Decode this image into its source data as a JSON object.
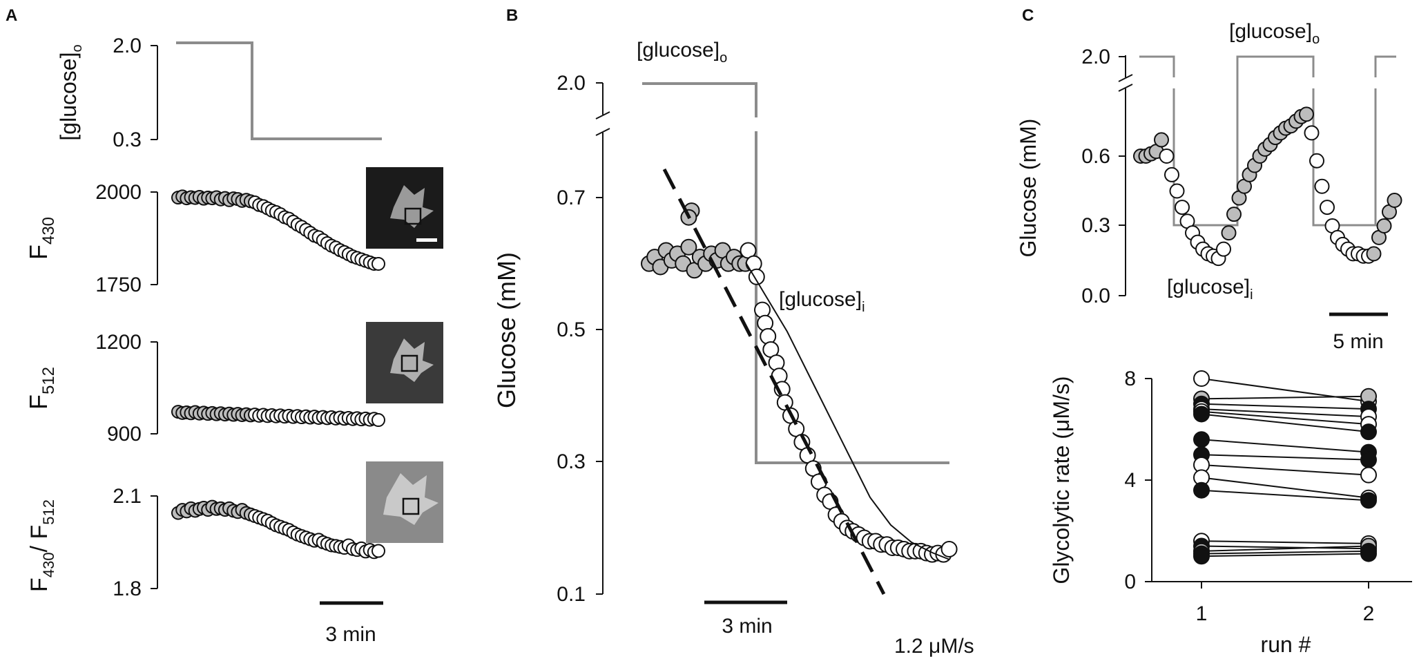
{
  "panels": {
    "A": {
      "letter": "A",
      "glucose_label": "[glucose]",
      "glucose_sub": "o",
      "glucose_ticks": [
        "2.0",
        "0.3"
      ],
      "f430_label": "F",
      "f430_sub": "430",
      "f430_ticks": [
        "2000",
        "1750"
      ],
      "f512_label": "F",
      "f512_sub": "512",
      "f512_ticks": [
        "1200",
        "900"
      ],
      "ratio_label_a": "F",
      "ratio_sub_a": "430",
      "ratio_label_b": "/ F",
      "ratio_sub_b": "512",
      "ratio_ticks": [
        "2.1",
        "1.8"
      ],
      "scale_bar": "3 min"
    },
    "B": {
      "letter": "B",
      "ylabel": "Glucose (mM)",
      "yticks": [
        "2.0",
        "0.7",
        "0.5",
        "0.3",
        "0.1"
      ],
      "glucose_o_label": "[glucose]",
      "glucose_o_sub": "o",
      "glucose_i_label": "[glucose]",
      "glucose_i_sub": "i",
      "rate_label": "1.2 μM/s",
      "scale_bar": "3 min"
    },
    "C": {
      "letter": "C",
      "top_ylabel": "Glucose (mM)",
      "top_yticks": [
        "2.0",
        "0.6",
        "0.3",
        "0.0"
      ],
      "glucose_o_label": "[glucose]",
      "glucose_o_sub": "o",
      "glucose_i_label": "[glucose]",
      "glucose_i_sub": "i",
      "scale_bar": "5 min",
      "bottom_ylabel": "Glycolytic rate (μM/s)",
      "bottom_yticks": [
        "8",
        "4",
        "0"
      ],
      "bottom_xlabel": "run #",
      "bottom_xticks": [
        "1",
        "2"
      ]
    }
  },
  "colors": {
    "stimulus": "#8c8c8c",
    "marker_gray": "#bdbdbd",
    "marker_white": "#ffffff",
    "marker_black": "#111111"
  },
  "chart_data": [
    {
      "type": "line",
      "panel": "A-glucose",
      "series": [
        {
          "values": [
            {
              "t": 0,
              "y": 2.0
            },
            {
              "t": 3.8,
              "y": 2.0
            },
            {
              "t": 3.8,
              "y": 0.3
            },
            {
              "t": 9.5,
              "y": 0.3
            }
          ]
        }
      ],
      "x": {
        "unit": "min"
      },
      "ylim": [
        0.3,
        2.0
      ]
    },
    {
      "type": "scatter",
      "panel": "A-F430",
      "ylim": [
        1750,
        2000
      ],
      "series": [
        {
          "x_min": [
            0,
            0.2,
            0.4,
            0.6,
            0.8,
            1,
            1.2,
            1.4,
            1.6,
            1.8,
            2,
            2.2,
            2.4,
            2.6,
            2.8,
            3,
            3.2,
            3.4,
            3.6,
            3.8,
            4,
            4.2,
            4.4,
            4.6,
            4.8,
            5,
            5.2,
            5.4,
            5.6,
            5.8,
            6,
            6.2,
            6.4,
            6.6,
            6.8,
            7,
            7.2,
            7.4,
            7.6,
            7.8,
            8,
            8.2,
            8.4,
            8.6,
            8.8,
            9,
            9.2,
            9.4
          ],
          "y": [
            1985,
            1988,
            1983,
            1986,
            1984,
            1987,
            1982,
            1985,
            1983,
            1986,
            1980,
            1984,
            1978,
            1983,
            1981,
            1976,
            1979,
            1975,
            1972,
            1965,
            1962,
            1956,
            1950,
            1946,
            1940,
            1932,
            1928,
            1920,
            1912,
            1906,
            1898,
            1890,
            1882,
            1878,
            1870,
            1862,
            1855,
            1850,
            1843,
            1838,
            1832,
            1826,
            1822,
            1818,
            1814,
            1810,
            1806,
            1806
          ]
        }
      ]
    },
    {
      "type": "scatter",
      "panel": "A-F512",
      "ylim": [
        900,
        1200
      ],
      "series": [
        {
          "x_min": [
            0,
            0.2,
            0.4,
            0.6,
            0.8,
            1,
            1.2,
            1.4,
            1.6,
            1.8,
            2,
            2.2,
            2.4,
            2.6,
            2.8,
            3,
            3.2,
            3.4,
            3.6,
            3.8,
            4,
            4.2,
            4.4,
            4.6,
            4.8,
            5,
            5.2,
            5.4,
            5.6,
            5.8,
            6,
            6.2,
            6.4,
            6.6,
            6.8,
            7,
            7.2,
            7.4,
            7.6,
            7.8,
            8,
            8.2,
            8.4,
            8.6,
            8.8,
            9,
            9.2,
            9.4
          ],
          "y": [
            972,
            968,
            970,
            967,
            971,
            966,
            969,
            965,
            968,
            964,
            967,
            963,
            966,
            962,
            965,
            961,
            964,
            960,
            963,
            959,
            962,
            958,
            961,
            957,
            960,
            956,
            959,
            955,
            958,
            954,
            957,
            953,
            956,
            952,
            955,
            951,
            954,
            950,
            953,
            949,
            952,
            948,
            951,
            947,
            950,
            946,
            949,
            945
          ]
        }
      ]
    },
    {
      "type": "scatter",
      "panel": "A-ratio",
      "ylim": [
        1.8,
        2.1
      ],
      "series": [
        {
          "x_min": [
            0,
            0.2,
            0.4,
            0.6,
            0.8,
            1,
            1.2,
            1.4,
            1.6,
            1.8,
            2,
            2.2,
            2.4,
            2.6,
            2.8,
            3,
            3.2,
            3.4,
            3.6,
            3.8,
            4,
            4.2,
            4.4,
            4.6,
            4.8,
            5,
            5.2,
            5.4,
            5.6,
            5.8,
            6,
            6.2,
            6.4,
            6.6,
            6.8,
            7,
            7.2,
            7.4,
            7.6,
            7.8,
            8,
            8.2,
            8.4,
            8.6,
            8.8,
            9,
            9.2,
            9.4
          ],
          "y": [
            2.045,
            2.055,
            2.05,
            2.06,
            2.052,
            2.058,
            2.062,
            2.055,
            2.065,
            2.058,
            2.06,
            2.055,
            2.06,
            2.052,
            2.048,
            2.055,
            2.045,
            2.04,
            2.035,
            2.03,
            2.025,
            2.02,
            2.012,
            2.005,
            2.0,
            1.995,
            1.99,
            1.982,
            1.975,
            1.97,
            1.965,
            1.96,
            1.955,
            1.958,
            1.95,
            1.945,
            1.94,
            1.938,
            1.935,
            1.932,
            1.94,
            1.928,
            1.925,
            1.93,
            1.92,
            1.925,
            1.918,
            1.922
          ]
        }
      ]
    },
    {
      "type": "scatter",
      "panel": "B",
      "x": {
        "unit": "min"
      },
      "ylim": [
        0.1,
        0.7
      ],
      "series": [
        {
          "style": "gray",
          "x_min": [
            0,
            0.2,
            0.4,
            0.6,
            0.8,
            1,
            1.2,
            1.4,
            1.6,
            1.8,
            2,
            2.2,
            2.4,
            2.6,
            2.8,
            3,
            3.2,
            3.4,
            1.5,
            1.4
          ],
          "y": [
            0.6,
            0.61,
            0.595,
            0.62,
            0.605,
            0.615,
            0.6,
            0.625,
            0.59,
            0.61,
            0.6,
            0.615,
            0.605,
            0.62,
            0.6,
            0.61,
            0.6,
            0.6,
            0.68,
            0.67
          ]
        },
        {
          "style": "white",
          "x_min": [
            3.5,
            3.7,
            3.8,
            4,
            4.1,
            4.2,
            4.3,
            4.5,
            4.6,
            4.7,
            4.8,
            5,
            5.2,
            5.4,
            5.6,
            5.8,
            6,
            6.2,
            6.4,
            6.6,
            6.8,
            7,
            7.2,
            7.4,
            7.6,
            7.8,
            8,
            8.2,
            8.4,
            8.6,
            8.8,
            9,
            9.2,
            9.4,
            9.6,
            9.8,
            10,
            10.2,
            10.4,
            10.6
          ],
          "y": [
            0.62,
            0.6,
            0.58,
            0.53,
            0.51,
            0.49,
            0.47,
            0.45,
            0.43,
            0.41,
            0.39,
            0.37,
            0.35,
            0.33,
            0.31,
            0.29,
            0.27,
            0.25,
            0.24,
            0.22,
            0.21,
            0.2,
            0.195,
            0.19,
            0.185,
            0.18,
            0.18,
            0.175,
            0.175,
            0.17,
            0.17,
            0.168,
            0.165,
            0.165,
            0.165,
            0.162,
            0.16,
            0.162,
            0.16,
            0.168
          ]
        }
      ],
      "fit_line": {
        "rate_label": "1.2 μM/s",
        "points": [
          {
            "x_min": 1.8,
            "y": 0.75
          },
          {
            "x_min": 9.8,
            "y": 0.1
          }
        ]
      },
      "stimulus": [
        {
          "t": 0,
          "y": 2.0
        },
        {
          "t": 4.2,
          "y": 2.0
        },
        {
          "t": 4.2,
          "y": 0.3
        },
        {
          "t": 11.3,
          "y": 0.3
        }
      ]
    },
    {
      "type": "scatter",
      "panel": "C-top",
      "x": {
        "unit": "min"
      },
      "ylim": [
        0.0,
        0.8
      ],
      "stimulus_periods": [
        {
          "from": 0,
          "to": 2.5,
          "y": 2.0
        },
        {
          "from": 2.5,
          "to": 8.5,
          "y": 0.3
        },
        {
          "from": 8.5,
          "to": 16.5,
          "y": 2.0
        },
        {
          "from": 16.5,
          "to": 22.5,
          "y": 0.3
        },
        {
          "from": 22.5,
          "to": 25,
          "y": 2.0
        }
      ],
      "series": [
        {
          "x_min": [
            0,
            0.5,
            1,
            1.5,
            2,
            2.5,
            3,
            3.5,
            4,
            4.5,
            5,
            5.5,
            6,
            6.5,
            7,
            7.5,
            8,
            8.5,
            9,
            9.5,
            10,
            10.5,
            11,
            11.5,
            12,
            12.5,
            13,
            13.5,
            14,
            14.5,
            15,
            15.5,
            16,
            16.5,
            17,
            17.5,
            18,
            18.5,
            19,
            19.5,
            20,
            20.5,
            21,
            21.5,
            22,
            22.5,
            23,
            23.5,
            24,
            24.5
          ],
          "y": [
            0.6,
            0.6,
            0.61,
            0.62,
            0.67,
            0.6,
            0.52,
            0.45,
            0.38,
            0.32,
            0.27,
            0.23,
            0.2,
            0.18,
            0.17,
            0.16,
            0.2,
            0.27,
            0.35,
            0.42,
            0.47,
            0.52,
            0.56,
            0.6,
            0.63,
            0.65,
            0.68,
            0.7,
            0.72,
            0.73,
            0.75,
            0.77,
            0.78,
            0.7,
            0.58,
            0.47,
            0.38,
            0.3,
            0.25,
            0.22,
            0.2,
            0.18,
            0.18,
            0.17,
            0.17,
            0.18,
            0.25,
            0.3,
            0.36,
            0.41
          ]
        }
      ]
    },
    {
      "type": "line",
      "panel": "C-bottom",
      "categories": [
        "1",
        "2"
      ],
      "ylim": [
        0,
        8
      ],
      "series": [
        {
          "values": [
            8.0,
            7.1
          ]
        },
        {
          "values": [
            7.2,
            7.3
          ]
        },
        {
          "values": [
            7.0,
            6.8
          ]
        },
        {
          "values": [
            6.8,
            6.5
          ]
        },
        {
          "values": [
            6.7,
            6.2
          ]
        },
        {
          "values": [
            6.6,
            5.9
          ]
        },
        {
          "values": [
            5.6,
            5.1
          ]
        },
        {
          "values": [
            5.0,
            4.8
          ]
        },
        {
          "values": [
            4.6,
            4.2
          ]
        },
        {
          "values": [
            4.1,
            3.3
          ]
        },
        {
          "values": [
            3.6,
            3.2
          ]
        },
        {
          "values": [
            1.6,
            1.5
          ]
        },
        {
          "values": [
            1.4,
            1.3
          ]
        },
        {
          "values": [
            1.2,
            1.4
          ]
        },
        {
          "values": [
            1.1,
            1.2
          ]
        },
        {
          "values": [
            1.0,
            1.1
          ]
        }
      ]
    }
  ]
}
